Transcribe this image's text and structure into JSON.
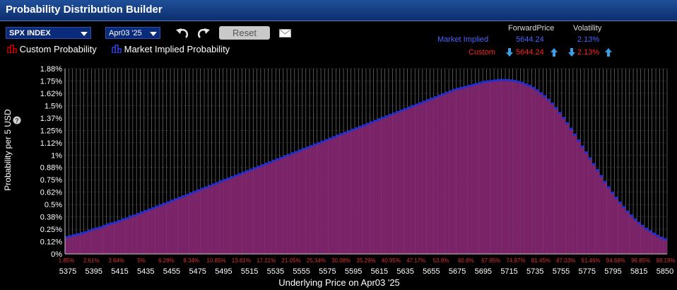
{
  "window": {
    "title": "Probability Distribution Builder"
  },
  "toolbar": {
    "underlying": "SPX INDEX",
    "expiry": "Apr03 '25",
    "reset_label": "Reset",
    "undo_icon": "undo-icon",
    "redo_icon": "redo-icon",
    "mail_icon": "mail-icon"
  },
  "legend": {
    "custom_label": "Custom Probability",
    "market_label": "Market Implied Probability",
    "custom_color": "#d00000",
    "market_color": "#2030d0"
  },
  "stats": {
    "forward_header": "ForwardPrice",
    "volatility_header": "Volatility",
    "market_label": "Market Implied",
    "market_forward": "5644.24",
    "market_vol": "2.13%",
    "custom_label": "Custom",
    "custom_forward": "5644.24",
    "custom_vol": "2.13%",
    "market_color": "#4a63ff",
    "custom_color": "#ff2020",
    "arrow_color": "#3aa0e8"
  },
  "chart_data": {
    "type": "bar",
    "ylabel": "Probability per 5 USD",
    "xlabel": "Underlying Price on Apr03 '25",
    "ylim": [
      0,
      1.88
    ],
    "y_ticks": [
      "0%",
      "0.12%",
      "0.25%",
      "0.38%",
      "0.5%",
      "0.62%",
      "0.75%",
      "0.88%",
      "1%",
      "1.12%",
      "1.25%",
      "1.37%",
      "1.5%",
      "1.62%",
      "1.75%",
      "1.88%"
    ],
    "x_ticks": [
      "5375",
      "5395",
      "5415",
      "5435",
      "5455",
      "5475",
      "5495",
      "5515",
      "5535",
      "5555",
      "5575",
      "5595",
      "5615",
      "5635",
      "5655",
      "5675",
      "5695",
      "5715",
      "5735",
      "5755",
      "5775",
      "5795",
      "5815",
      "5850"
    ],
    "cumulative_labels": [
      "1.85%",
      "2.61%",
      "3.64%",
      "5%",
      "6.28%",
      "8.34%",
      "10.85%",
      "13.81%",
      "17.21%",
      "21.05%",
      "25.34%",
      "30.08%",
      "35.29%",
      "40.95%",
      "47.17%",
      "53.9%",
      "60.8%",
      "67.95%",
      "74.97%",
      "81.45%",
      "87.03%",
      "91.46%",
      "94.69%",
      "96.85%",
      "98.19%"
    ],
    "x_start": 5375,
    "x_step": 5,
    "grid": true,
    "series": [
      {
        "name": "Market Implied Probability",
        "color": "#2030d0",
        "values": [
          0.17,
          0.18,
          0.19,
          0.2,
          0.21,
          0.22,
          0.235,
          0.25,
          0.26,
          0.27,
          0.285,
          0.3,
          0.31,
          0.32,
          0.335,
          0.35,
          0.36,
          0.38,
          0.39,
          0.405,
          0.42,
          0.435,
          0.45,
          0.465,
          0.48,
          0.495,
          0.51,
          0.525,
          0.54,
          0.555,
          0.57,
          0.585,
          0.6,
          0.615,
          0.63,
          0.645,
          0.66,
          0.675,
          0.69,
          0.705,
          0.72,
          0.735,
          0.75,
          0.765,
          0.78,
          0.795,
          0.81,
          0.825,
          0.84,
          0.855,
          0.87,
          0.885,
          0.9,
          0.915,
          0.93,
          0.945,
          0.96,
          0.975,
          0.99,
          1.005,
          1.02,
          1.035,
          1.05,
          1.065,
          1.08,
          1.095,
          1.11,
          1.125,
          1.14,
          1.155,
          1.17,
          1.185,
          1.2,
          1.215,
          1.23,
          1.245,
          1.26,
          1.275,
          1.29,
          1.305,
          1.32,
          1.335,
          1.35,
          1.365,
          1.38,
          1.395,
          1.41,
          1.425,
          1.44,
          1.455,
          1.47,
          1.485,
          1.5,
          1.515,
          1.53,
          1.545,
          1.56,
          1.575,
          1.59,
          1.605,
          1.62,
          1.635,
          1.65,
          1.665,
          1.675,
          1.685,
          1.695,
          1.705,
          1.715,
          1.725,
          1.735,
          1.745,
          1.75,
          1.755,
          1.76,
          1.765,
          1.765,
          1.765,
          1.76,
          1.755,
          1.745,
          1.735,
          1.72,
          1.705,
          1.685,
          1.66,
          1.63,
          1.6,
          1.565,
          1.525,
          1.48,
          1.43,
          1.38,
          1.325,
          1.27,
          1.21,
          1.15,
          1.09,
          1.03,
          0.97,
          0.91,
          0.85,
          0.79,
          0.73,
          0.675,
          0.62,
          0.57,
          0.52,
          0.475,
          0.43,
          0.39,
          0.35,
          0.315,
          0.285,
          0.255,
          0.23,
          0.205,
          0.185,
          0.165,
          0.15
        ]
      }
    ]
  }
}
